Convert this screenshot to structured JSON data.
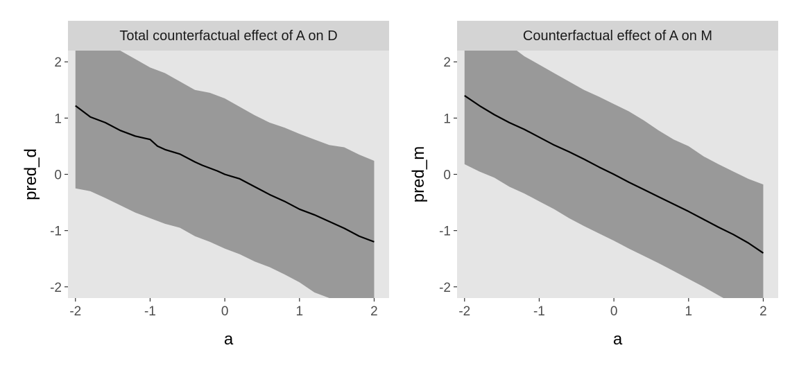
{
  "chart_data": [
    {
      "type": "line",
      "title": "Total counterfactual effect of A on D",
      "xlabel": "a",
      "ylabel": "pred_d",
      "xlim": [
        -2.1,
        2.2
      ],
      "ylim": [
        -2.2,
        2.2
      ],
      "xticks": [
        -2,
        -1,
        0,
        1,
        2
      ],
      "yticks": [
        -2,
        -1,
        0,
        1,
        2
      ],
      "xtick_labels": [
        "-2",
        "-1",
        "0",
        "1",
        "2"
      ],
      "ytick_labels": [
        "-2",
        "-1",
        "0",
        "1",
        "2"
      ],
      "grid": false,
      "legend": "none",
      "series": [
        {
          "role": "mean",
          "color": "#000000",
          "x": [
            -2.0,
            -1.8,
            -1.6,
            -1.4,
            -1.2,
            -1.0,
            -0.9,
            -0.8,
            -0.6,
            -0.4,
            -0.3,
            -0.1,
            0.0,
            0.2,
            0.4,
            0.6,
            0.8,
            1.0,
            1.2,
            1.4,
            1.6,
            1.8,
            2.0
          ],
          "y": [
            1.22,
            1.02,
            0.92,
            0.78,
            0.68,
            0.62,
            0.5,
            0.44,
            0.36,
            0.22,
            0.16,
            0.06,
            0.0,
            -0.08,
            -0.22,
            -0.36,
            -0.48,
            -0.62,
            -0.72,
            -0.84,
            -0.96,
            -1.1,
            -1.2
          ],
          "band": {
            "color": "#999999",
            "x": [
              -2.0,
              -1.8,
              -1.6,
              -1.4,
              -1.2,
              -1.0,
              -0.8,
              -0.6,
              -0.4,
              -0.2,
              0.0,
              0.2,
              0.4,
              0.6,
              0.8,
              1.0,
              1.2,
              1.4,
              1.6,
              1.8,
              2.0
            ],
            "upper": [
              2.4,
              2.4,
              2.3,
              2.2,
              2.05,
              1.9,
              1.8,
              1.65,
              1.5,
              1.45,
              1.35,
              1.2,
              1.05,
              0.92,
              0.83,
              0.72,
              0.62,
              0.52,
              0.48,
              0.35,
              0.24
            ],
            "lower": [
              -0.25,
              -0.3,
              -0.42,
              -0.55,
              -0.68,
              -0.78,
              -0.88,
              -0.95,
              -1.1,
              -1.2,
              -1.32,
              -1.42,
              -1.55,
              -1.65,
              -1.78,
              -1.92,
              -2.1,
              -2.2,
              -2.3,
              -2.4,
              -2.4
            ]
          }
        }
      ]
    },
    {
      "type": "line",
      "title": "Counterfactual effect of A on M",
      "xlabel": "a",
      "ylabel": "pred_m",
      "xlim": [
        -2.1,
        2.2
      ],
      "ylim": [
        -2.2,
        2.2
      ],
      "xticks": [
        -2,
        -1,
        0,
        1,
        2
      ],
      "yticks": [
        -2,
        -1,
        0,
        1,
        2
      ],
      "xtick_labels": [
        "-2",
        "-1",
        "0",
        "1",
        "2"
      ],
      "ytick_labels": [
        "-2",
        "-1",
        "0",
        "1",
        "2"
      ],
      "grid": false,
      "legend": "none",
      "series": [
        {
          "role": "mean",
          "color": "#000000",
          "x": [
            -2.0,
            -1.8,
            -1.6,
            -1.4,
            -1.2,
            -1.0,
            -0.8,
            -0.6,
            -0.4,
            -0.2,
            0.0,
            0.2,
            0.4,
            0.6,
            0.8,
            1.0,
            1.2,
            1.4,
            1.6,
            1.8,
            2.0
          ],
          "y": [
            1.4,
            1.22,
            1.06,
            0.92,
            0.8,
            0.66,
            0.52,
            0.4,
            0.27,
            0.13,
            0.0,
            -0.14,
            -0.27,
            -0.4,
            -0.53,
            -0.66,
            -0.8,
            -0.94,
            -1.07,
            -1.22,
            -1.4
          ],
          "band": {
            "color": "#999999",
            "x": [
              -2.0,
              -1.8,
              -1.6,
              -1.4,
              -1.2,
              -1.0,
              -0.8,
              -0.6,
              -0.4,
              -0.2,
              0.0,
              0.2,
              0.4,
              0.6,
              0.8,
              1.0,
              1.2,
              1.4,
              1.6,
              1.8,
              2.0
            ],
            "upper": [
              2.4,
              2.4,
              2.4,
              2.3,
              2.1,
              1.95,
              1.8,
              1.65,
              1.5,
              1.38,
              1.25,
              1.12,
              0.96,
              0.78,
              0.62,
              0.5,
              0.32,
              0.18,
              0.05,
              -0.08,
              -0.18
            ],
            "lower": [
              0.18,
              0.05,
              -0.06,
              -0.22,
              -0.34,
              -0.48,
              -0.62,
              -0.78,
              -0.92,
              -1.05,
              -1.18,
              -1.32,
              -1.45,
              -1.58,
              -1.72,
              -1.86,
              -2.0,
              -2.15,
              -2.3,
              -2.4,
              -2.4
            ]
          }
        }
      ]
    }
  ],
  "theme": {
    "panel_background": "#e5e5e5",
    "strip_background": "#d4d4d4",
    "tick_color": "#333333",
    "tick_label_color": "#4d4d4d"
  }
}
